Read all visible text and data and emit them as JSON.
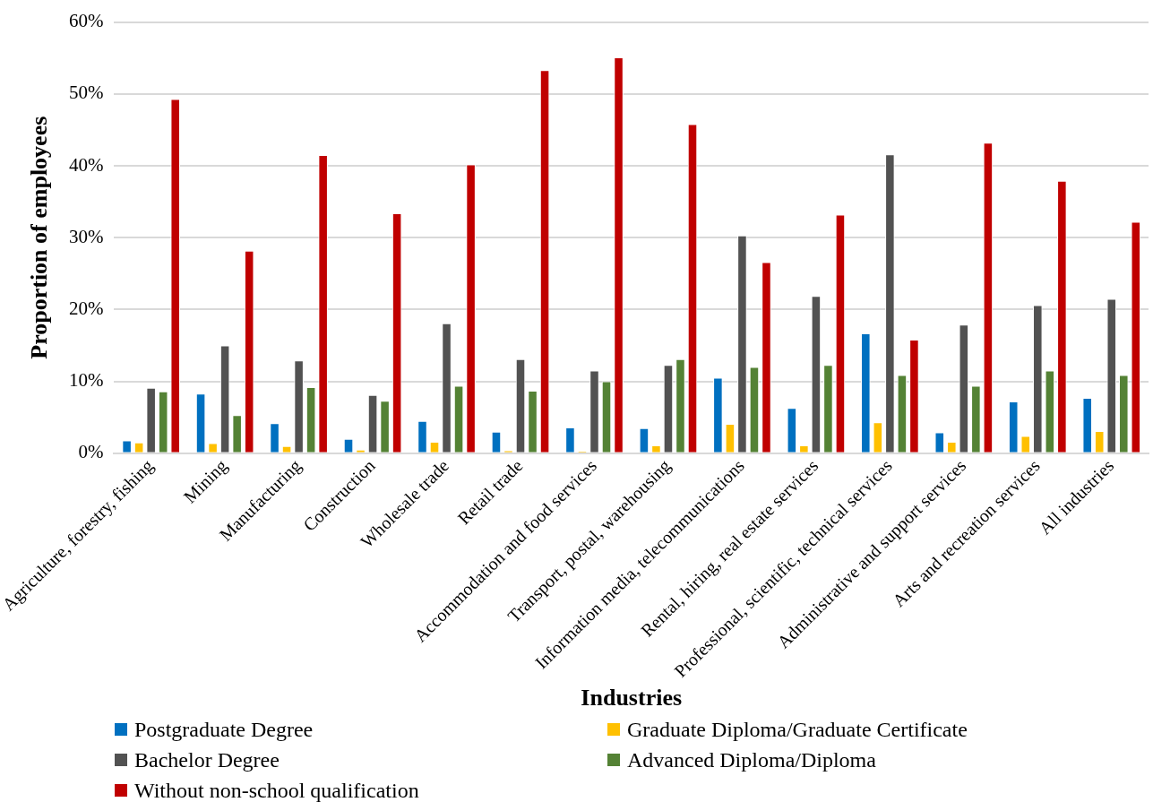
{
  "chart_data": {
    "type": "bar",
    "xlabel": "Industries",
    "ylabel": "Proportion of employees",
    "categories": [
      "Agriculture, forestry, fishing",
      "Mining",
      "Manufacturing",
      "Construction",
      "Wholesale trade",
      "Retail trade",
      "Accommodation and food services",
      "Transport, postal, warehousing",
      "Information media, telecommunications",
      "Rental, hiring, real estate services",
      "Professional, scientific, technical services",
      "Administrative and support services",
      "Arts and recreation services",
      "All industries"
    ],
    "series": [
      {
        "name": "Postgraduate Degree",
        "color": "#0070c0",
        "values": [
          1.8,
          8.3,
          4.2,
          2.0,
          4.5,
          3.0,
          3.6,
          3.5,
          10.5,
          6.3,
          16.7,
          2.9,
          7.2,
          7.7
        ]
      },
      {
        "name": "Graduate Diploma/Graduate Certificate",
        "color": "#ffc000",
        "values": [
          1.5,
          1.4,
          1.0,
          0.5,
          1.6,
          0.4,
          0.3,
          1.1,
          4.1,
          1.1,
          4.3,
          1.6,
          2.4,
          3.1
        ]
      },
      {
        "name": "Bachelor Degree",
        "color": "#525252",
        "values": [
          9.1,
          15.0,
          12.9,
          8.1,
          18.1,
          13.1,
          11.5,
          12.3,
          30.3,
          21.9,
          41.6,
          17.9,
          20.6,
          21.5
        ]
      },
      {
        "name": "Advanced Diploma/Diploma",
        "color": "#548235",
        "values": [
          8.6,
          5.3,
          9.2,
          7.3,
          9.4,
          8.7,
          10.0,
          13.1,
          12.0,
          12.3,
          10.9,
          9.4,
          11.5,
          10.9
        ]
      },
      {
        "name": "Without non-school qualification",
        "color": "#c00000",
        "values": [
          49.3,
          28.2,
          41.5,
          33.4,
          40.2,
          53.3,
          55.1,
          45.8,
          26.6,
          33.2,
          15.8,
          43.2,
          37.9,
          32.2
        ]
      }
    ],
    "ylim": [
      0,
      60
    ],
    "yticks": [
      {
        "value": 0,
        "label": "0%"
      },
      {
        "value": 10,
        "label": "10%"
      },
      {
        "value": 20,
        "label": "20%"
      },
      {
        "value": 30,
        "label": "30%"
      },
      {
        "value": 40,
        "label": "40%"
      },
      {
        "value": 50,
        "label": "50%"
      },
      {
        "value": 60,
        "label": "60%"
      }
    ],
    "grid": "y",
    "legend": "bottom"
  }
}
